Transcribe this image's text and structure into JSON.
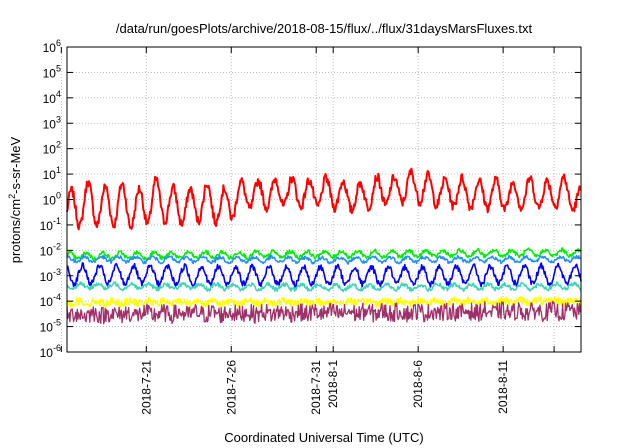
{
  "chart_data": {
    "type": "line",
    "title": "/data/run/goesPlots/archive/2018-08-15/flux/../flux/31daysMarsFluxes.txt",
    "xlabel": "Coordinated Universal Time (UTC)",
    "ylabel": {
      "prefix": "protons/cm",
      "sup": "2",
      "suffix": "-s-sr-MeV"
    },
    "yscale": "log",
    "ylim": [
      1e-06,
      1000000.0
    ],
    "xlim": [
      "2018-07-16T08:00",
      "2018-08-15T14:00"
    ],
    "grid": true,
    "y_ticks": [
      {
        "exp": "-6",
        "value": 1e-06
      },
      {
        "exp": "-5",
        "value": 1e-05
      },
      {
        "exp": "-4",
        "value": 0.0001
      },
      {
        "exp": "-3",
        "value": 0.001
      },
      {
        "exp": "-2",
        "value": 0.01
      },
      {
        "exp": "-1",
        "value": 0.1
      },
      {
        "exp": "0",
        "value": 1
      },
      {
        "exp": "1",
        "value": 10.0
      },
      {
        "exp": "2",
        "value": 100.0
      },
      {
        "exp": "3",
        "value": 1000.0
      },
      {
        "exp": "4",
        "value": 10000.0
      },
      {
        "exp": "5",
        "value": 100000.0
      },
      {
        "exp": "6",
        "value": 1000000.0
      }
    ],
    "y_tick_base": "10",
    "x_ticks": [
      {
        "label": "2018-7-21",
        "date": "2018-07-21"
      },
      {
        "label": "2018-7-26",
        "date": "2018-07-26"
      },
      {
        "label": "2018-7-31",
        "date": "2018-07-31"
      },
      {
        "label": "2018-8-1",
        "date": "2018-08-01"
      },
      {
        "label": "2018-8-6",
        "date": "2018-08-06"
      },
      {
        "label": "2018-8-11",
        "date": "2018-08-11"
      }
    ],
    "x_gridlines": [
      "2018-07-16",
      "2018-07-21",
      "2018-07-26",
      "2018-07-31",
      "2018-08-01",
      "2018-08-06",
      "2018-08-11",
      "2018-08-14"
    ],
    "series": [
      {
        "color": "#ff0000",
        "stroke": 2.0,
        "noise": 0.18,
        "x": [
          "2018-07-16T08:00",
          "2018-07-17T12:00",
          "2018-07-18T12:00",
          "2018-07-19T12:00",
          "2018-07-20T12:00",
          "2018-07-21T12:00",
          "2018-07-22T12:00",
          "2018-07-23T12:00",
          "2018-07-24T12:00",
          "2018-07-25T12:00",
          "2018-07-26T00:00",
          "2018-07-26T12:00",
          "2018-07-27T12:00",
          "2018-07-28T12:00",
          "2018-07-29T12:00",
          "2018-07-30T12:00",
          "2018-07-31T12:00",
          "2018-08-01T12:00",
          "2018-08-02T12:00",
          "2018-08-03T12:00",
          "2018-08-04T12:00",
          "2018-08-05T12:00",
          "2018-08-06T12:00",
          "2018-08-07T12:00",
          "2018-08-08T12:00",
          "2018-08-09T12:00",
          "2018-08-10T12:00",
          "2018-08-11T12:00",
          "2018-08-12T12:00",
          "2018-08-13T12:00",
          "2018-08-14T12:00",
          "2018-08-15T14:00"
        ],
        "y": [
          0.3,
          0.8,
          0.5,
          0.7,
          0.4,
          1.0,
          0.6,
          0.5,
          0.9,
          0.5,
          0.8,
          1.5,
          1.5,
          1.8,
          2.0,
          1.6,
          2.0,
          1.5,
          1.2,
          2.2,
          2.0,
          3.5,
          2.6,
          1.8,
          2.0,
          1.6,
          1.7,
          1.3,
          2.0,
          1.5,
          2.3,
          0.8
        ],
        "swing": [
          0.8,
          0.8,
          0.8,
          0.8,
          0.8,
          0.8,
          0.7,
          0.7,
          0.7,
          0.7,
          0.7,
          0.55,
          0.55,
          0.55,
          0.55,
          0.55,
          0.55,
          0.55,
          0.55,
          0.55,
          0.55,
          0.55,
          0.55,
          0.55,
          0.55,
          0.55,
          0.55,
          0.55,
          0.55,
          0.55,
          0.55,
          0.5
        ]
      },
      {
        "color": "#00ee00",
        "stroke": 1.5,
        "noise": 0.08,
        "x": [
          "2018-07-16T08:00",
          "2018-07-31T00:00",
          "2018-08-15T14:00"
        ],
        "y": [
          0.006,
          0.007,
          0.008
        ],
        "swing": [
          0.12,
          0.12,
          0.12
        ]
      },
      {
        "color": "#1e90ff",
        "stroke": 1.5,
        "noise": 0.07,
        "x": [
          "2018-07-16T08:00",
          "2018-07-31T00:00",
          "2018-08-15T14:00"
        ],
        "y": [
          0.0045,
          0.0042,
          0.0045
        ],
        "swing": [
          0.1,
          0.1,
          0.1
        ]
      },
      {
        "color": "#0000ff",
        "stroke": 1.6,
        "noise": 0.12,
        "x": [
          "2018-07-16T08:00",
          "2018-07-31T00:00",
          "2018-08-15T14:00"
        ],
        "y": [
          0.0011,
          0.001,
          0.0011
        ],
        "swing": [
          0.35,
          0.35,
          0.35
        ]
      },
      {
        "color": "#3cd4b4",
        "stroke": 1.5,
        "noise": 0.08,
        "x": [
          "2018-07-16T08:00",
          "2018-07-31T00:00",
          "2018-08-15T14:00"
        ],
        "y": [
          0.0004,
          0.00035,
          0.00038
        ],
        "swing": [
          0.1,
          0.1,
          0.1
        ]
      },
      {
        "color": "#ffff00",
        "stroke": 1.5,
        "noise": 0.15,
        "x": [
          "2018-07-16T08:00",
          "2018-07-31T00:00",
          "2018-08-15T14:00"
        ],
        "y": [
          9e-05,
          9e-05,
          0.0001
        ],
        "swing": [
          0.05,
          0.05,
          0.05
        ]
      },
      {
        "color": "#a0306a",
        "stroke": 1.3,
        "noise": 0.35,
        "x": [
          "2018-07-16T08:00",
          "2018-07-31T00:00",
          "2018-08-15T14:00"
        ],
        "y": [
          3e-05,
          3.5e-05,
          4e-05
        ],
        "swing": [
          0.05,
          0.05,
          0.05
        ]
      }
    ]
  }
}
